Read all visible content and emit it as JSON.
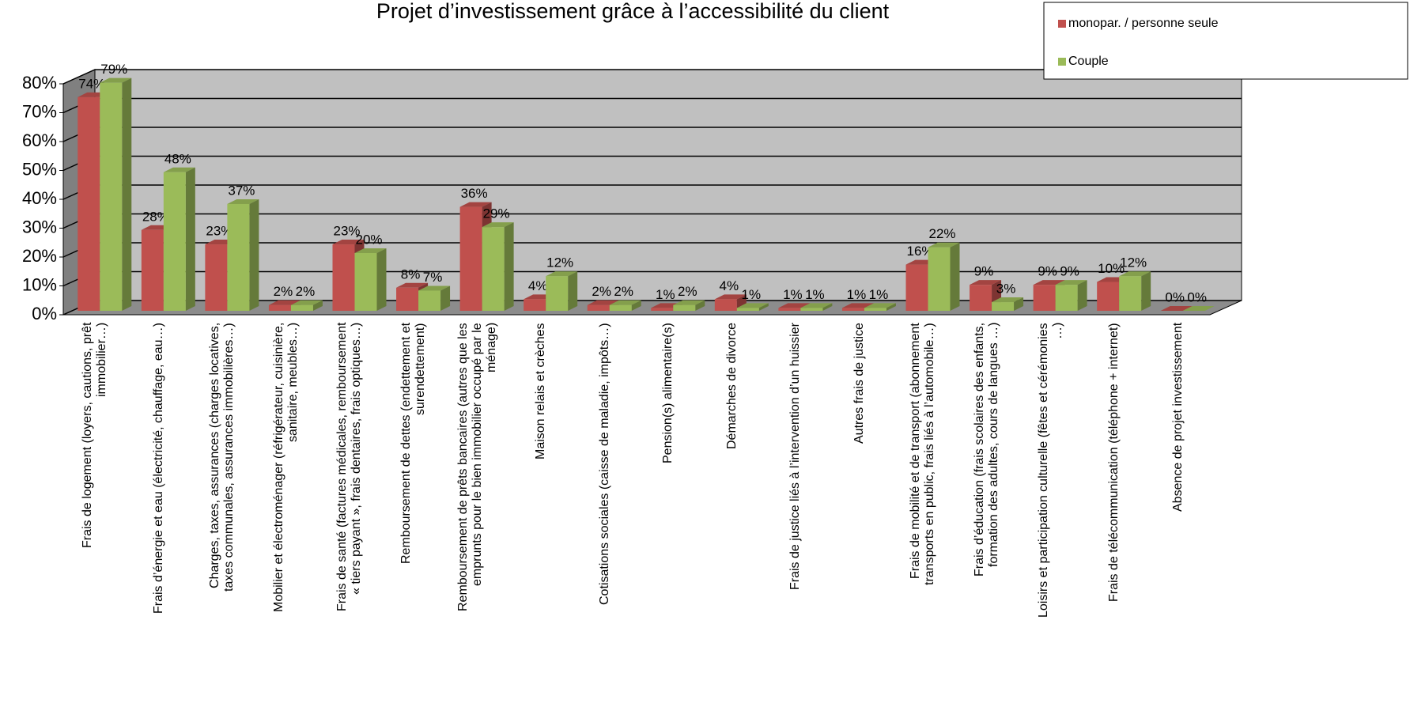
{
  "chart_data": {
    "type": "bar3d",
    "title": "Projet d’investissement grâce à l’accessibilité du client",
    "categories": [
      "Frais de logement (loyers, cautions, prêt immobilier…)",
      "Frais d’énergie et eau (électricité, chauffage, eau…)",
      "Charges, taxes, assurances (charges locatives, taxes communales, assurances immobilières…)",
      "Mobilier et électroménager (réfrigérateur, cuisinière, sanitaire, meubles…)",
      "Frais de santé (factures médicales, remboursement « tiers payant », frais dentaires, frais optiques…)",
      "Remboursement de dettes (endettement et surendettement)",
      "Remboursement de prêts bancaires (autres que les emprunts pour le bien immobilier occupé par le ménage)",
      "Maison relais et crèches",
      "Cotisations sociales (caisse de maladie, impôts…)",
      "Pension(s) alimentaire(s)",
      "Démarches de divorce",
      "Frais de justice liés à l’intervention d’un huissier",
      "Autres frais de justice",
      "Frais de mobilité et de transport (abonnement transports en public, frais liés à l’automobile…)",
      "Frais d’éducation (frais scolaires des enfants, formation des adultes, cours de langues …)",
      "Loisirs et participation culturelle (fêtes et cérémonies …)",
      "Frais de télécommunication (téléphone + internet)",
      "Absence de projet investissement"
    ],
    "series": [
      {
        "name": "monopar. / personne seule",
        "color": "#c0504d",
        "values": [
          74,
          28,
          23,
          2,
          23,
          8,
          36,
          4,
          2,
          1,
          4,
          1,
          1,
          16,
          9,
          9,
          10,
          0
        ],
        "value_labels": [
          "74%",
          "28%",
          "23%",
          "2%",
          "23%",
          "8%",
          "36%",
          "4%",
          "2%",
          "1%",
          "4%",
          "1%",
          "1%",
          "16%",
          "9%",
          "9%",
          "10%",
          "0%"
        ]
      },
      {
        "name": "Couple",
        "color": "#9bbb59",
        "values": [
          79,
          48,
          37,
          2,
          20,
          7,
          29,
          12,
          2,
          2,
          1,
          1,
          1,
          22,
          3,
          9,
          12,
          0
        ],
        "value_labels": [
          "79%",
          "48%",
          "37%",
          "2%",
          "20%",
          "7%",
          "29%",
          "12%",
          "2%",
          "2%",
          "1%",
          "1%",
          "1%",
          "22%",
          "3%",
          "9%",
          "12%",
          "0%"
        ]
      }
    ],
    "ylim": [
      0,
      80
    ],
    "yticks": [
      {
        "value": 0,
        "label": "0%"
      },
      {
        "value": 10,
        "label": "10%"
      },
      {
        "value": 20,
        "label": "20%"
      },
      {
        "value": 30,
        "label": "30%"
      },
      {
        "value": 40,
        "label": "40%"
      },
      {
        "value": 50,
        "label": "50%"
      },
      {
        "value": 60,
        "label": "60%"
      },
      {
        "value": 70,
        "label": "70%"
      },
      {
        "value": 80,
        "label": "80%"
      }
    ],
    "grid": true,
    "legend": "upper right"
  }
}
